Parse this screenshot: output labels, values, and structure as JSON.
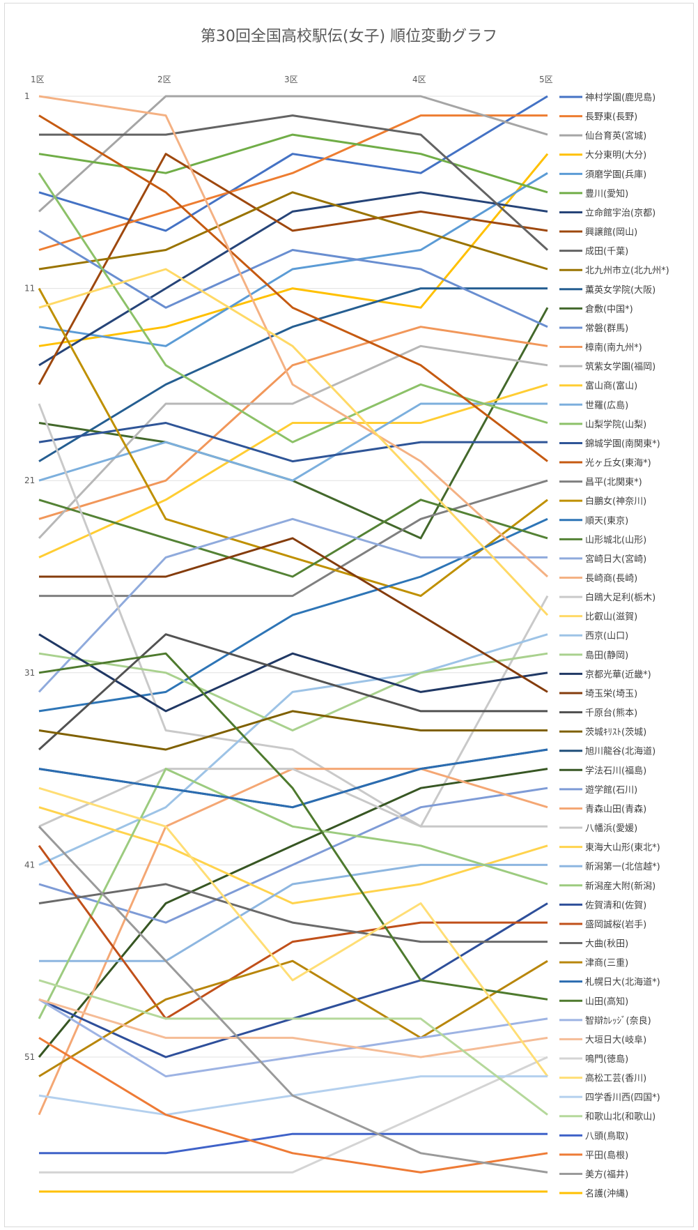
{
  "chart_data": {
    "type": "line",
    "title": "第30回全国高校駅伝(女子) 順位変動グラフ",
    "x_categories": [
      "1区",
      "2区",
      "3区",
      "4区",
      "5区"
    ],
    "y_ticks": [
      "1",
      "11",
      "21",
      "31",
      "41",
      "51"
    ],
    "ylim": [
      1,
      58
    ],
    "y_reversed": true,
    "grid": "horizontal",
    "legend_position": "right",
    "series": [
      {
        "name": "神村学園(鹿児島)",
        "color": "#4472C4",
        "values": [
          6,
          8,
          4,
          5,
          1
        ]
      },
      {
        "name": "長野東(長野)",
        "color": "#ED7D31",
        "values": [
          9,
          7,
          5,
          2,
          2
        ]
      },
      {
        "name": "仙台育英(宮城)",
        "color": "#A5A5A5",
        "values": [
          7,
          1,
          1,
          1,
          3
        ]
      },
      {
        "name": "大分東明(大分)",
        "color": "#FFC000",
        "values": [
          14,
          13,
          11,
          12,
          4
        ]
      },
      {
        "name": "須磨学園(兵庫)",
        "color": "#5B9BD5",
        "values": [
          13,
          14,
          10,
          9,
          5
        ]
      },
      {
        "name": "豊川(愛知)",
        "color": "#70AD47",
        "values": [
          4,
          5,
          3,
          4,
          6
        ]
      },
      {
        "name": "立命館宇治(京都)",
        "color": "#264478",
        "values": [
          15,
          11,
          7,
          6,
          7
        ]
      },
      {
        "name": "興譲館(岡山)",
        "color": "#9E480E",
        "values": [
          16,
          4,
          8,
          7,
          8
        ]
      },
      {
        "name": "成田(千葉)",
        "color": "#636363",
        "values": [
          3,
          3,
          2,
          3,
          9
        ]
      },
      {
        "name": "北九州市立(北九州*)",
        "color": "#997300",
        "values": [
          10,
          9,
          6,
          8,
          10
        ]
      },
      {
        "name": "薫英女学院(大阪)",
        "color": "#255E91",
        "values": [
          20,
          16,
          13,
          11,
          11
        ]
      },
      {
        "name": "倉敷(中国*)",
        "color": "#43682B",
        "values": [
          18,
          19,
          21,
          24,
          12
        ]
      },
      {
        "name": "常磐(群馬)",
        "color": "#698ED0",
        "values": [
          8,
          12,
          9,
          10,
          13
        ]
      },
      {
        "name": "樟南(南九州*)",
        "color": "#F1975A",
        "values": [
          23,
          21,
          15,
          13,
          14
        ]
      },
      {
        "name": "筑紫女学園(福岡)",
        "color": "#B7B7B7",
        "values": [
          24,
          17,
          17,
          14,
          15
        ]
      },
      {
        "name": "富山商(富山)",
        "color": "#FFCD33",
        "values": [
          25,
          22,
          18,
          18,
          16
        ]
      },
      {
        "name": "世羅(広島)",
        "color": "#7CAFDD",
        "values": [
          21,
          19,
          21,
          17,
          17
        ]
      },
      {
        "name": "山梨学院(山梨)",
        "color": "#8CC168",
        "values": [
          5,
          15,
          19,
          16,
          18
        ]
      },
      {
        "name": "錦城学園(南関東*)",
        "color": "#2F5597",
        "values": [
          19,
          18,
          20,
          19,
          19
        ]
      },
      {
        "name": "光ヶ丘女(東海*)",
        "color": "#C55A11",
        "values": [
          2,
          6,
          12,
          15,
          20
        ]
      },
      {
        "name": "昌平(北関東*)",
        "color": "#7F7F7F",
        "values": [
          27,
          27,
          27,
          23,
          21
        ]
      },
      {
        "name": "白鵬女(神奈川)",
        "color": "#BF9000",
        "values": [
          11,
          23,
          25,
          27,
          22
        ]
      },
      {
        "name": "順天(東京)",
        "color": "#2E75B6",
        "values": [
          33,
          32,
          28,
          26,
          23
        ]
      },
      {
        "name": "山形城北(山形)",
        "color": "#548235",
        "values": [
          22,
          24,
          26,
          22,
          24
        ]
      },
      {
        "name": "宮崎日大(宮崎)",
        "color": "#8FAADC",
        "values": [
          32,
          25,
          23,
          25,
          25
        ]
      },
      {
        "name": "長崎商(長崎)",
        "color": "#F4B183",
        "values": [
          1,
          2,
          16,
          20,
          26
        ]
      },
      {
        "name": "白鴎大足利(栃木)",
        "color": "#C9C9C9",
        "values": [
          17,
          34,
          35,
          39,
          27
        ]
      },
      {
        "name": "比叡山(滋賀)",
        "color": "#FFD966",
        "values": [
          12,
          10,
          14,
          21,
          28
        ]
      },
      {
        "name": "西京(山口)",
        "color": "#9DC3E6",
        "values": [
          41,
          38,
          32,
          31,
          29
        ]
      },
      {
        "name": "島田(静岡)",
        "color": "#A9D18E",
        "values": [
          30,
          31,
          34,
          31,
          30
        ]
      },
      {
        "name": "京都光華(近畿*)",
        "color": "#203864",
        "values": [
          29,
          33,
          30,
          32,
          31
        ]
      },
      {
        "name": "埼玉栄(埼玉)",
        "color": "#843C0C",
        "values": [
          26,
          26,
          24,
          28,
          32
        ]
      },
      {
        "name": "千原台(熊本)",
        "color": "#525252",
        "values": [
          35,
          29,
          31,
          33,
          33
        ]
      },
      {
        "name": "茨城ｷﾘｽﾄ(茨城)",
        "color": "#7F6000",
        "values": [
          34,
          35,
          33,
          34,
          34
        ]
      },
      {
        "name": "旭川龍谷(北海道)",
        "color": "#1F4E79",
        "values": [
          36,
          37,
          38,
          36,
          35
        ]
      },
      {
        "name": "学法石川(福島)",
        "color": "#375623",
        "values": [
          51,
          43,
          40,
          37,
          36
        ]
      },
      {
        "name": "遊学館(石川)",
        "color": "#7E9BD6",
        "values": [
          42,
          44,
          41,
          38,
          37
        ]
      },
      {
        "name": "青森山田(青森)",
        "color": "#F4A774",
        "values": [
          54,
          39,
          36,
          36,
          38
        ]
      },
      {
        "name": "八幡浜(愛媛)",
        "color": "#C8C8C8",
        "values": [
          39,
          36,
          36,
          39,
          39
        ]
      },
      {
        "name": "東海大山形(東北*)",
        "color": "#FFD34D",
        "values": [
          38,
          40,
          43,
          42,
          40
        ]
      },
      {
        "name": "新潟第一(北信越*)",
        "color": "#8DB6E0",
        "values": [
          46,
          46,
          42,
          41,
          41
        ]
      },
      {
        "name": "新潟産大附(新潟)",
        "color": "#9CCB7F",
        "values": [
          49,
          36,
          39,
          40,
          42
        ]
      },
      {
        "name": "佐賀清和(佐賀)",
        "color": "#2E4F9A",
        "values": [
          48,
          51,
          49,
          47,
          43
        ]
      },
      {
        "name": "盛岡誠桜(岩手)",
        "color": "#C0501A",
        "values": [
          40,
          49,
          45,
          44,
          44
        ]
      },
      {
        "name": "大曲(秋田)",
        "color": "#6A6A6A",
        "values": [
          43,
          42,
          44,
          45,
          45
        ]
      },
      {
        "name": "津商(三重)",
        "color": "#B8860B",
        "values": [
          52,
          48,
          46,
          50,
          46
        ]
      },
      {
        "name": "札幌日大(北海道*)",
        "color": "#2B6CB0",
        "values": [
          36,
          37,
          38,
          36,
          35
        ]
      },
      {
        "name": "山田(高知)",
        "color": "#4E7A2E",
        "values": [
          31,
          30,
          37,
          47,
          48
        ]
      },
      {
        "name": "智辯ｶﾚｯｼﾞ(奈良)",
        "color": "#9DB3E3",
        "values": [
          48,
          52,
          51,
          50,
          49
        ]
      },
      {
        "name": "大垣日大(岐阜)",
        "color": "#F5BC96",
        "values": [
          48,
          50,
          50,
          51,
          50
        ]
      },
      {
        "name": "鳴門(徳島)",
        "color": "#D4D4D4",
        "values": [
          57,
          57,
          57,
          54,
          51
        ]
      },
      {
        "name": "高松工芸(香川)",
        "color": "#FFDE75",
        "values": [
          37,
          39,
          47,
          43,
          52
        ]
      },
      {
        "name": "四学香川西(四国*)",
        "color": "#B4D0EE",
        "values": [
          53,
          54,
          53,
          52,
          52
        ]
      },
      {
        "name": "和歌山北(和歌山)",
        "color": "#B5D89B",
        "values": [
          47,
          49,
          49,
          49,
          54
        ]
      },
      {
        "name": "八頭(鳥取)",
        "color": "#3F62C8",
        "values": [
          56,
          56,
          55,
          55,
          55
        ]
      },
      {
        "name": "平田(島根)",
        "color": "#EE7B36",
        "values": [
          50,
          54,
          56,
          57,
          56
        ]
      },
      {
        "name": "美方(福井)",
        "color": "#9A9A9A",
        "values": [
          39,
          46,
          53,
          56,
          57
        ]
      },
      {
        "name": "名護(沖縄)",
        "color": "#FFC000",
        "values": [
          58,
          58,
          58,
          58,
          58
        ]
      }
    ]
  }
}
